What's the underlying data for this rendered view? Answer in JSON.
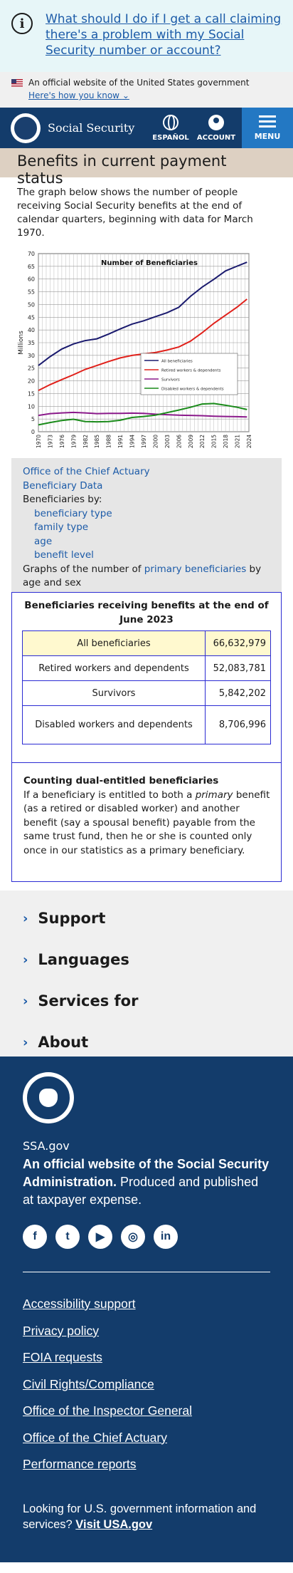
{
  "alert": {
    "text": "What should I do if I get a call claiming there's a problem with my Social Security number or account?"
  },
  "govbanner": {
    "official": "An official website of the United States government",
    "how": "Here's how you know"
  },
  "header": {
    "brand": "Social Security",
    "lang": "ESPAÑOL",
    "account": "ACCOUNT",
    "menu": "MENU"
  },
  "page": {
    "title": "Benefits in current payment status",
    "intro": "The graph below shows the number of people receiving Social Security benefits at the end of calendar quarters, beginning with data for March 1970."
  },
  "chart_data": {
    "type": "line",
    "title": "Number of Beneficiaries",
    "ylabel": "Millions",
    "ylim": [
      0,
      70
    ],
    "yticks": [
      0,
      5,
      10,
      15,
      20,
      25,
      30,
      35,
      40,
      45,
      50,
      55,
      60,
      65,
      70
    ],
    "xticks": [
      "1970",
      "1973",
      "1976",
      "1979",
      "1982",
      "1985",
      "1988",
      "1991",
      "1994",
      "1997",
      "2000",
      "2003",
      "2006",
      "2009",
      "2012",
      "2015",
      "2018",
      "2021",
      "2024"
    ],
    "xlim": [
      1970,
      2024
    ],
    "grid": true,
    "legend": "inside-right",
    "colors": {
      "all": "#1a1a6e",
      "retired": "#e0201a",
      "survivors": "#8b1a8b",
      "disabled": "#1a8b1a"
    },
    "series": [
      {
        "name": "All beneficiaries",
        "x": [
          1970,
          1973,
          1976,
          1979,
          1982,
          1985,
          1988,
          1991,
          1994,
          1997,
          2000,
          2003,
          2006,
          2009,
          2012,
          2015,
          2018,
          2021,
          2023.5
        ],
        "values": [
          26,
          29.5,
          32.5,
          34.5,
          35.8,
          36.5,
          38.4,
          40.4,
          42.3,
          43.6,
          45.2,
          46.8,
          48.9,
          53.2,
          56.8,
          59.9,
          63.2,
          65.1,
          66.6
        ]
      },
      {
        "name": "Retired workers & dependents",
        "x": [
          1970,
          1973,
          1976,
          1979,
          1982,
          1985,
          1988,
          1991,
          1994,
          1997,
          2000,
          2003,
          2006,
          2009,
          2012,
          2015,
          2018,
          2021,
          2023.5
        ],
        "values": [
          16.2,
          18.5,
          20.5,
          22.4,
          24.5,
          26,
          27.6,
          29,
          30,
          30.6,
          31.1,
          32.1,
          33.3,
          35.6,
          38.9,
          42.6,
          45.8,
          49,
          52.1
        ]
      },
      {
        "name": "Survivors",
        "x": [
          1970,
          1973,
          1976,
          1979,
          1982,
          1985,
          1988,
          1991,
          1994,
          1997,
          2000,
          2003,
          2006,
          2009,
          2012,
          2015,
          2018,
          2021,
          2023.5
        ],
        "values": [
          6.4,
          7.1,
          7.4,
          7.6,
          7.4,
          7.1,
          7.2,
          7.2,
          7.3,
          7.2,
          6.9,
          6.7,
          6.5,
          6.4,
          6.3,
          6.1,
          6.0,
          5.9,
          5.8
        ]
      },
      {
        "name": "Disabled workers & dependents",
        "x": [
          1970,
          1973,
          1976,
          1979,
          1982,
          1985,
          1988,
          1991,
          1994,
          1997,
          2000,
          2003,
          2006,
          2009,
          2012,
          2015,
          2018,
          2021,
          2023.5
        ],
        "values": [
          2.7,
          3.6,
          4.4,
          4.9,
          4.0,
          3.9,
          4.0,
          4.5,
          5.6,
          6.0,
          6.5,
          7.5,
          8.5,
          9.6,
          10.9,
          11.1,
          10.4,
          9.6,
          8.7
        ]
      }
    ]
  },
  "links": {
    "actuary": "Office of the Chief Actuary",
    "benefdata": "Beneficiary Data",
    "by": "Beneficiaries by:",
    "sub": [
      "beneficiary type",
      "family type",
      "age",
      "benefit level"
    ],
    "graphs_pre": "Graphs of the number of ",
    "graphs_link": "primary beneficiaries",
    "graphs_post": " by age and sex"
  },
  "table": {
    "title": "Beneficiaries receiving benefits at the end of June 2023",
    "rows": [
      {
        "label": "All beneficiaries",
        "value": "66,632,979"
      },
      {
        "label": "Retired workers and dependents",
        "value": "52,083,781"
      },
      {
        "label": "Survivors",
        "value": "5,842,202"
      },
      {
        "label": "Disabled workers and dependents",
        "value": "8,706,996"
      }
    ]
  },
  "dual": {
    "heading": "Counting dual-entitled beneficiaries",
    "p1": "If a beneficiary is entitled to both a ",
    "em": "primary",
    "p2": " benefit (as a retired or disabled worker) and another benefit (say a spousal benefit) payable from the same trust fund, then he or she is counted only once in our statistics as a primary beneficiary."
  },
  "accordions": [
    "Support",
    "Languages",
    "Services for",
    "About"
  ],
  "footer": {
    "ssagov": "SSA.gov",
    "official_bold": "An official website of the Social Security Administration.",
    "official_rest": " Produced and published at taxpayer expense.",
    "socials": [
      "facebook-icon",
      "twitter-icon",
      "youtube-icon",
      "instagram-icon",
      "linkedin-icon"
    ],
    "links": [
      "Accessibility support",
      "Privacy policy",
      "FOIA requests",
      "Civil Rights/Compliance",
      "Office of the Inspector General",
      "Office of the Chief Actuary",
      "Performance reports"
    ],
    "usagov_text": "Looking for U.S. government information and services? ",
    "usagov_link": "Visit USA.gov"
  }
}
